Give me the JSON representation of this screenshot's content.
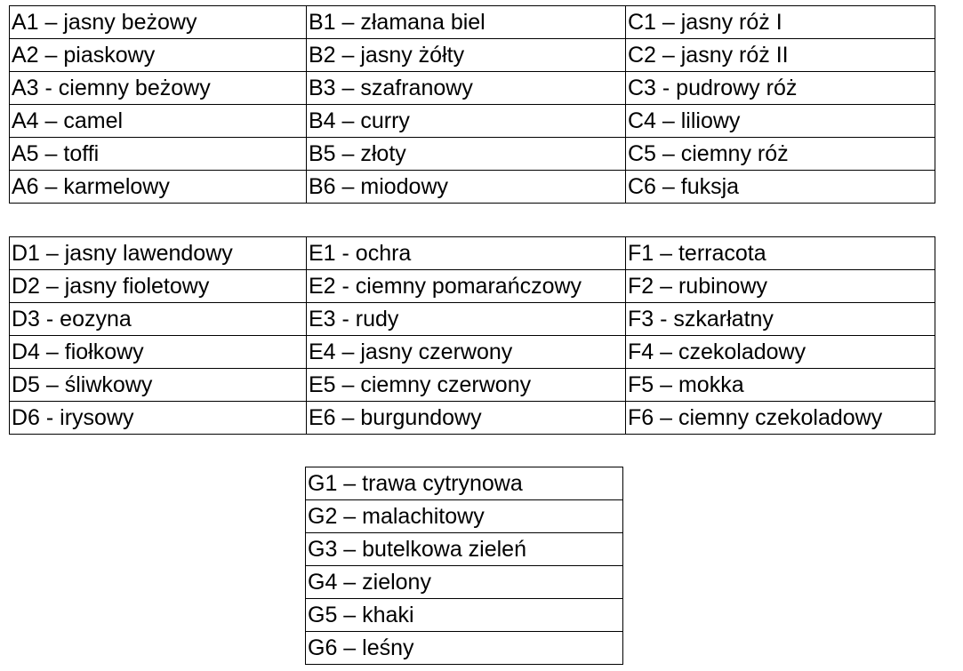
{
  "tables": [
    {
      "rows": [
        [
          "A1 – jasny beżowy",
          "B1 – złamana biel",
          "C1 – jasny róż I"
        ],
        [
          "A2 – piaskowy",
          "B2 – jasny żółty",
          "C2 – jasny róż II"
        ],
        [
          "A3 - ciemny beżowy",
          "B3 – szafranowy",
          "C3 - pudrowy róż"
        ],
        [
          "A4 – camel",
          "B4 – curry",
          "C4 – liliowy"
        ],
        [
          "A5 – toffi",
          "B5 – złoty",
          "C5 – ciemny róż"
        ],
        [
          "A6 – karmelowy",
          "B6 – miodowy",
          "C6 – fuksja"
        ]
      ]
    },
    {
      "rows": [
        [
          "D1 – jasny lawendowy",
          "E1 - ochra",
          "F1 – terracota"
        ],
        [
          "D2 – jasny fioletowy",
          "E2 - ciemny pomarańczowy",
          "F2 – rubinowy"
        ],
        [
          "D3 - eozyna",
          "E3 - rudy",
          "F3 - szkarłatny"
        ],
        [
          "D4 – fiołkowy",
          "E4 – jasny  czerwony",
          "F4 – czekoladowy"
        ],
        [
          "D5 – śliwkowy",
          "E5 – ciemny czerwony",
          "F5 – mokka"
        ],
        [
          "D6 - irysowy",
          "E6 – burgundowy",
          "F6 – ciemny czekoladowy"
        ]
      ]
    },
    {
      "rows": [
        [
          "G1 – trawa cytrynowa"
        ],
        [
          "G2 – malachitowy"
        ],
        [
          "G3 – butelkowa zieleń"
        ],
        [
          "G4 – zielony"
        ],
        [
          "G5 – khaki"
        ],
        [
          "G6 – leśny"
        ]
      ]
    }
  ]
}
